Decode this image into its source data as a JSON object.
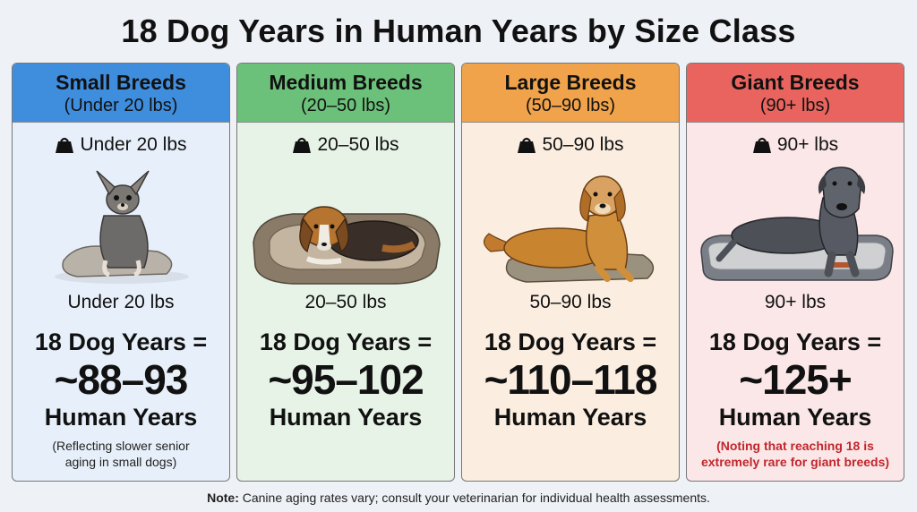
{
  "title": "18 Dog Years in Human Years by Size Class",
  "cards": [
    {
      "name": "Small Breeds",
      "range": "(Under 20 lbs)",
      "weight_label": "Under 20 lbs",
      "weight_caption": "Under 20 lbs",
      "equation": "18 Dog Years =",
      "value": "~88–93",
      "unit": "Human Years",
      "note_line1": "(Reflecting slower senior",
      "note_line2": "aging in small dogs)",
      "header_color": "#3f8ede",
      "body_color": "#e7f0fa"
    },
    {
      "name": "Medium Breeds",
      "range": "(20–50 lbs)",
      "weight_label": "20–50 lbs",
      "weight_caption": "20–50 lbs",
      "equation": "18 Dog Years =",
      "value": "~95–102",
      "unit": "Human Years",
      "header_color": "#6cc17a",
      "body_color": "#e6f3e6"
    },
    {
      "name": "Large Breeds",
      "range": "(50–90 lbs)",
      "weight_label": "50–90 lbs",
      "weight_caption": "50–90 lbs",
      "equation": "18 Dog Years =",
      "value": "~110–118",
      "unit": "Human Years",
      "header_color": "#f0a34a",
      "body_color": "#fbeee0"
    },
    {
      "name": "Giant Breeds",
      "range": "(90+ lbs)",
      "weight_label": "90+ lbs",
      "weight_caption": "90+ lbs",
      "equation": "18 Dog Years =",
      "value": "~125+",
      "unit": "Human Years",
      "note_line1": "(Noting that reaching 18 is",
      "note_line2": "extremely rare for giant breeds)",
      "header_color": "#e9645e",
      "body_color": "#fbe7e7"
    }
  ],
  "footer": {
    "label": "Note:",
    "text": " Canine aging rates vary; consult your veterinarian for individual health assessments."
  }
}
